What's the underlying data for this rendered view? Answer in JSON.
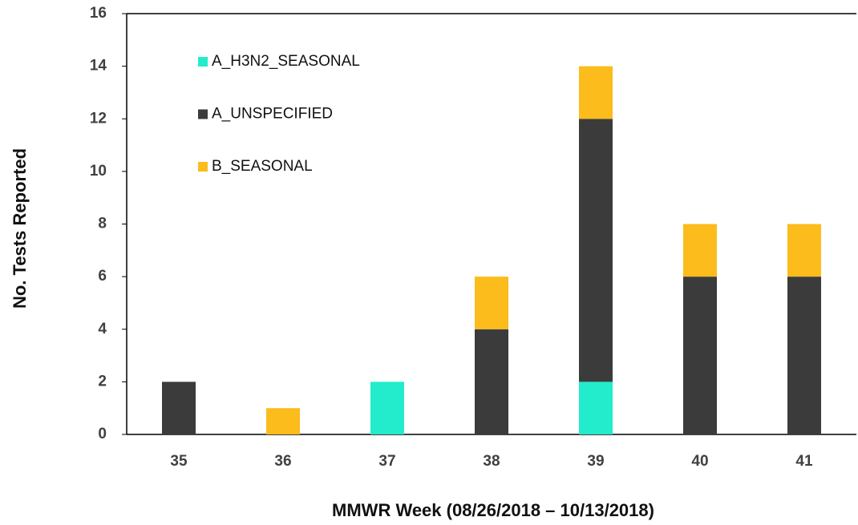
{
  "chart_data": {
    "type": "stacked_bar",
    "categories": [
      "35",
      "36",
      "37",
      "38",
      "39",
      "40",
      "41"
    ],
    "series": [
      {
        "name": "A_H3N2_SEASONAL",
        "color": "#22eccb",
        "values": [
          0,
          0,
          2,
          0,
          2,
          0,
          0
        ]
      },
      {
        "name": "A_UNSPECIFIED",
        "color": "#3b3b3b",
        "values": [
          2,
          0,
          0,
          4,
          10,
          6,
          6
        ]
      },
      {
        "name": "B_SEASONAL",
        "color": "#fbbc1c",
        "values": [
          0,
          1,
          0,
          2,
          2,
          2,
          2
        ]
      }
    ],
    "ylim": [
      0,
      16
    ],
    "yticks": [
      0,
      2,
      4,
      6,
      8,
      10,
      12,
      14,
      16
    ],
    "y_label": "No. Tests Reported",
    "x_label": "MMWR Week (08/26/2018 – 10/13/2018)",
    "legend": "upper left"
  }
}
